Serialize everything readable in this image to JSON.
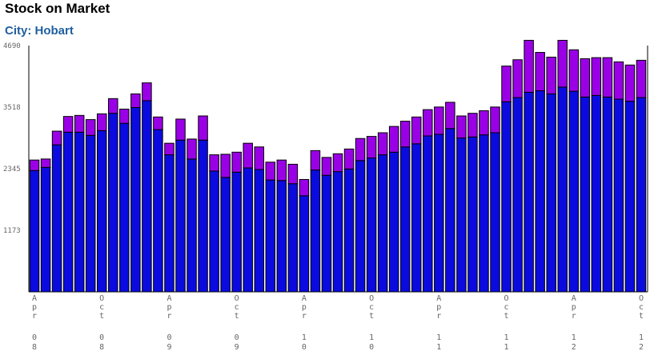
{
  "header": {
    "title": "Stock on Market",
    "subtitle": "City: Hobart"
  },
  "colors": {
    "base": "#0b0bdf",
    "top": "#9a00e6",
    "outline": "#000000",
    "axis": "#000000",
    "tick_text": "#666666",
    "subtitle": "#1f5f9f"
  },
  "chart_data": {
    "type": "bar",
    "stacked": true,
    "ylim": [
      0,
      4690
    ],
    "yticks": [
      1173,
      2345,
      3518,
      4690
    ],
    "x_labels": [
      {
        "index": 0,
        "month": "Apr",
        "year": "08"
      },
      {
        "index": 6,
        "month": "Oct",
        "year": "08"
      },
      {
        "index": 12,
        "month": "Apr",
        "year": "09"
      },
      {
        "index": 18,
        "month": "Oct",
        "year": "09"
      },
      {
        "index": 24,
        "month": "Apr",
        "year": "10"
      },
      {
        "index": 30,
        "month": "Oct",
        "year": "10"
      },
      {
        "index": 36,
        "month": "Apr",
        "year": "11"
      },
      {
        "index": 42,
        "month": "Oct",
        "year": "11"
      },
      {
        "index": 48,
        "month": "Apr",
        "year": "12"
      },
      {
        "index": 54,
        "month": "Oct",
        "year": "12"
      }
    ],
    "series": [
      {
        "values": [
          2310,
          2370,
          2800,
          3040,
          3040,
          2980,
          3070,
          3400,
          3210,
          3510,
          3640,
          3090,
          2610,
          2890,
          2530,
          2890,
          2300,
          2180,
          2280,
          2360,
          2330,
          2130,
          2120,
          2060,
          1830,
          2320,
          2220,
          2290,
          2340,
          2500,
          2550,
          2610,
          2660,
          2760,
          2820,
          2970,
          3000,
          3110,
          2930,
          2950,
          2990,
          3030,
          3620,
          3700,
          3800,
          3830,
          3770,
          3900,
          3820,
          3710,
          3740,
          3710,
          3670,
          3630,
          3700
        ],
        "color": "#0b0bdf"
      },
      {
        "values": [
          200,
          160,
          260,
          300,
          320,
          300,
          320,
          280,
          270,
          260,
          340,
          240,
          220,
          400,
          380,
          460,
          310,
          440,
          380,
          470,
          430,
          340,
          390,
          370,
          310,
          370,
          340,
          340,
          380,
          420,
          410,
          420,
          490,
          490,
          510,
          500,
          520,
          500,
          420,
          450,
          460,
          490,
          680,
          720,
          990,
          730,
          700,
          890,
          790,
          730,
          720,
          750,
          710,
          690,
          710
        ],
        "color": "#9a00e6"
      }
    ]
  }
}
